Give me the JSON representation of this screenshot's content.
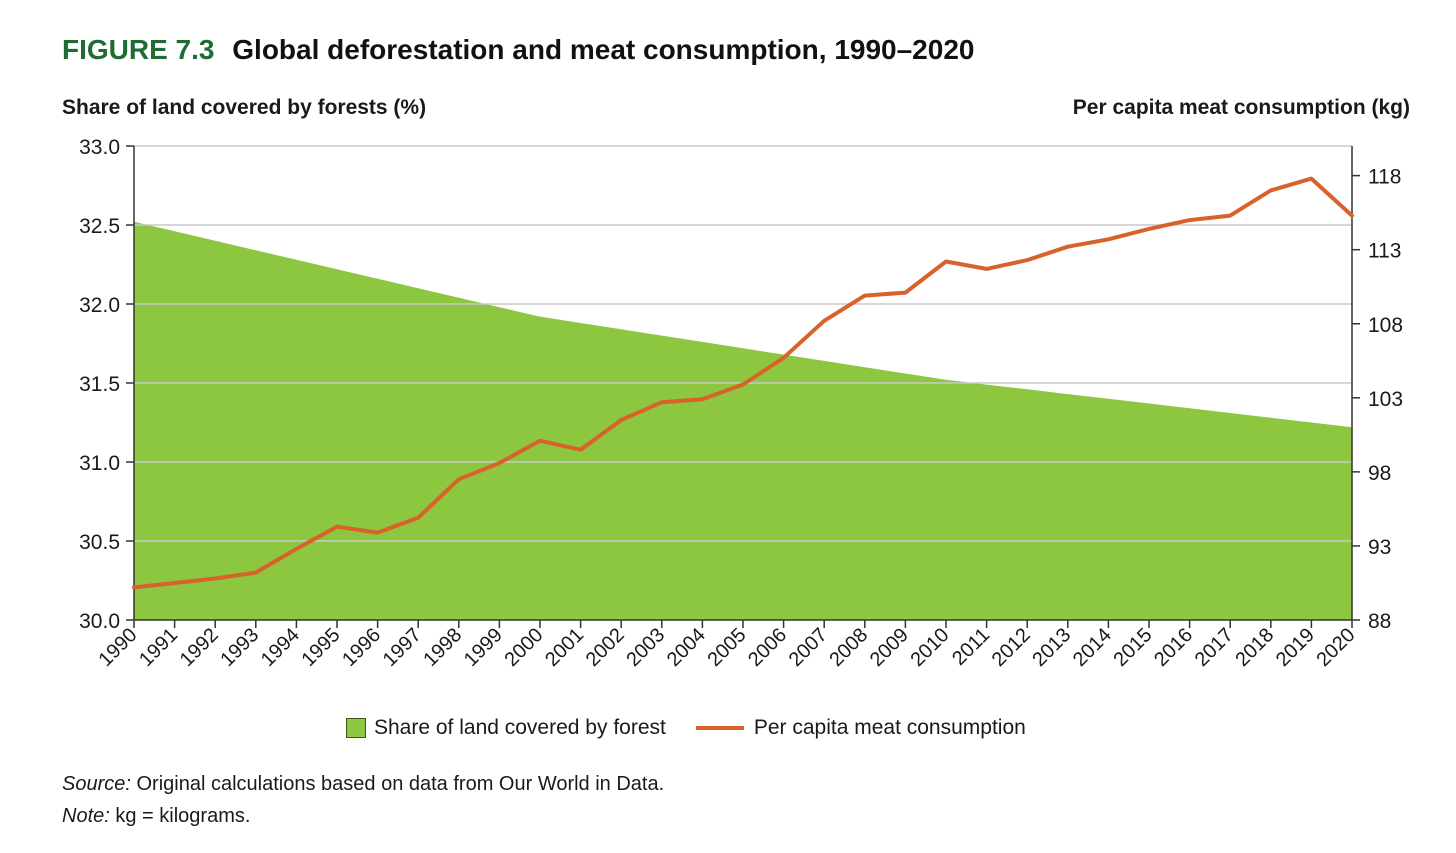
{
  "figure": {
    "label": "FIGURE 7.3",
    "title": "Global deforestation and meat consumption, 1990–2020"
  },
  "notes": {
    "source_label": "Source:",
    "source_text": " Original calculations based on data from Our World in Data.",
    "note_label": "Note:",
    "note_text": " kg = kilograms."
  },
  "colors": {
    "forest_fill": "#8dc63f",
    "meat_line": "#d8622a",
    "title_accent": "#1e6b34"
  },
  "chart_data": {
    "type": "area",
    "title": "Global deforestation and meat consumption, 1990–2020",
    "ylabel_left": "Share of land covered by forests (%)",
    "ylabel_right": "Per capita meat consumption (kg)",
    "x": [
      "1990",
      "1991",
      "1992",
      "1993",
      "1994",
      "1995",
      "1996",
      "1997",
      "1998",
      "1999",
      "2000",
      "2001",
      "2002",
      "2003",
      "2004",
      "2005",
      "2006",
      "2007",
      "2008",
      "2009",
      "2010",
      "2011",
      "2012",
      "2013",
      "2014",
      "2015",
      "2016",
      "2017",
      "2018",
      "2019",
      "2020"
    ],
    "ylim_left": [
      30.0,
      33.0
    ],
    "yticks_left": [
      "30.0",
      "30.5",
      "31.0",
      "31.5",
      "32.0",
      "32.5",
      "33.0"
    ],
    "ylim_right": [
      88,
      120
    ],
    "yticks_right": [
      "88",
      "93",
      "98",
      "103",
      "108",
      "113",
      "118"
    ],
    "grid": "horizontal",
    "legend_position": "bottom",
    "series": [
      {
        "name": "Share of land covered by forest",
        "type": "area",
        "axis": "left",
        "values": [
          32.52,
          32.46,
          32.4,
          32.34,
          32.28,
          32.22,
          32.16,
          32.1,
          32.04,
          31.98,
          31.92,
          31.88,
          31.84,
          31.8,
          31.76,
          31.72,
          31.68,
          31.64,
          31.6,
          31.56,
          31.52,
          31.49,
          31.46,
          31.43,
          31.4,
          31.37,
          31.34,
          31.31,
          31.28,
          31.25,
          31.22
        ]
      },
      {
        "name": "Per capita meat consumption",
        "type": "line",
        "axis": "right",
        "values": [
          90.2,
          90.5,
          90.8,
          91.2,
          92.8,
          94.3,
          93.9,
          94.9,
          97.5,
          98.6,
          100.1,
          99.5,
          101.5,
          102.7,
          102.9,
          103.9,
          105.7,
          108.2,
          109.9,
          110.1,
          112.2,
          111.7,
          112.3,
          113.2,
          113.7,
          114.4,
          115.0,
          115.3,
          117.0,
          117.8,
          115.3
        ]
      }
    ]
  }
}
